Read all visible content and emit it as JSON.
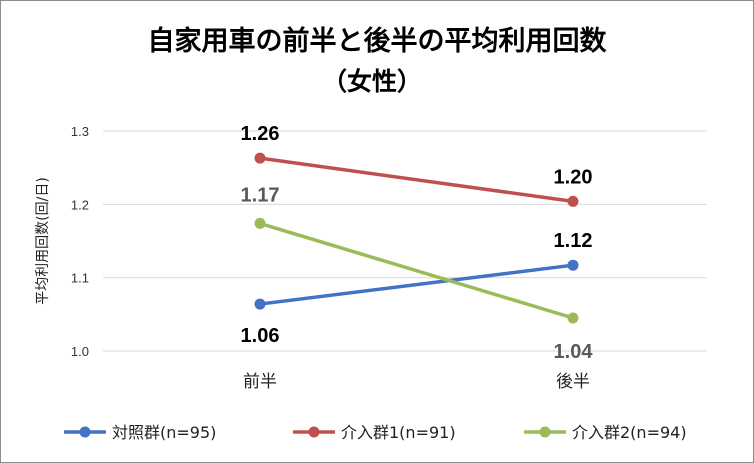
{
  "chart_data": {
    "type": "line",
    "title": "自家用車の前半と後半の平均利用回数",
    "subtitle": "（女性）",
    "ylabel": "平均利用回数(回/日)",
    "xlabel": "",
    "categories": [
      "前半",
      "後半"
    ],
    "ylim": [
      1.0,
      1.3
    ],
    "yticks": [
      "1.0",
      "1.1",
      "1.2",
      "1.3"
    ],
    "grid": true,
    "legend_position": "bottom",
    "series": [
      {
        "name": "対照群(n=95)",
        "values": [
          1.064,
          1.117
        ],
        "labels": [
          "1.06",
          "1.12"
        ],
        "color": "#4472c4",
        "label_color": "#000000"
      },
      {
        "name": "介入群1(n=91)",
        "values": [
          1.263,
          1.204
        ],
        "labels": [
          "1.26",
          "1.20"
        ],
        "color": "#c0504d",
        "label_color": "#000000"
      },
      {
        "name": "介入群2(n=94)",
        "values": [
          1.174,
          1.045
        ],
        "labels": [
          "1.17",
          "1.04"
        ],
        "color": "#9bbb59",
        "label_color": "#595959"
      }
    ]
  }
}
